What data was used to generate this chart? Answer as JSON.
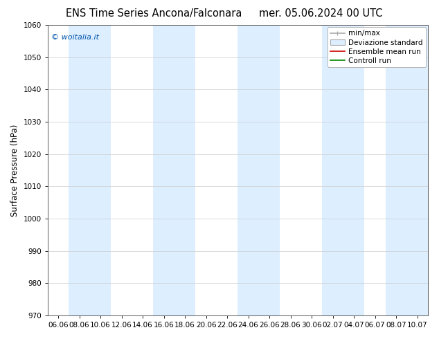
{
  "title_left": "ENS Time Series Ancona/Falconara",
  "title_right": "mer. 05.06.2024 00 UTC",
  "ylabel": "Surface Pressure (hPa)",
  "watermark": "© woitalia.it",
  "ylim": [
    970,
    1060
  ],
  "yticks": [
    970,
    980,
    990,
    1000,
    1010,
    1020,
    1030,
    1040,
    1050,
    1060
  ],
  "xtick_labels": [
    "06.06",
    "08.06",
    "10.06",
    "12.06",
    "14.06",
    "16.06",
    "18.06",
    "20.06",
    "22.06",
    "24.06",
    "26.06",
    "28.06",
    "30.06",
    "02.07",
    "04.07",
    "06.07",
    "08.07",
    "10.07"
  ],
  "bg_color": "#ffffff",
  "band_color": "#ddeeff",
  "band_centers": [
    1,
    2,
    5,
    6,
    9,
    10,
    13,
    14,
    16,
    17
  ],
  "legend_labels": [
    "min/max",
    "Deviazione standard",
    "Ensemble mean run",
    "Controll run"
  ],
  "title_fontsize": 10.5,
  "tick_fontsize": 7.5,
  "ylabel_fontsize": 8.5,
  "legend_fontsize": 7.5
}
